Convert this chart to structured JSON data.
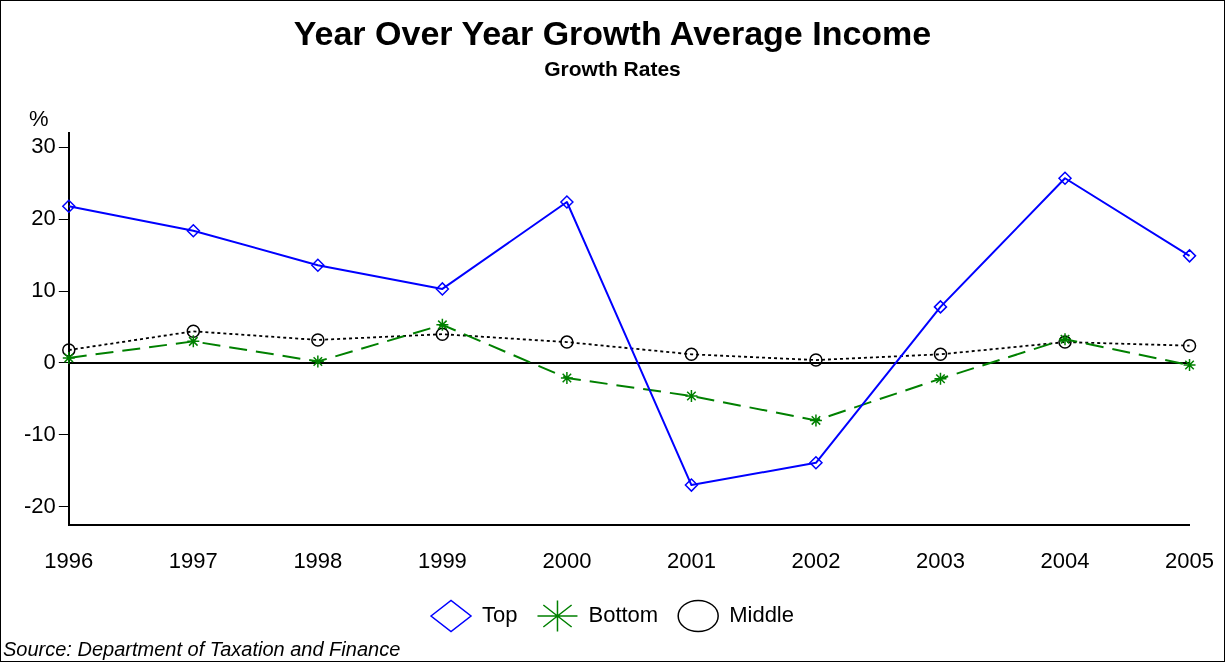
{
  "chart_data": {
    "type": "line",
    "title": "Year Over Year Growth Average Income",
    "subtitle": "Growth Rates",
    "ylabel": "%",
    "categories": [
      "1996",
      "1997",
      "1998",
      "1999",
      "2000",
      "2001",
      "2002",
      "2003",
      "2004",
      "2005"
    ],
    "series": [
      {
        "name": "Top",
        "color": "#0000ff",
        "marker": "diamond",
        "line_style": "solid",
        "values": [
          21.8,
          18.4,
          13.6,
          10.3,
          22.4,
          -17.0,
          -13.9,
          7.8,
          25.7,
          14.9
        ]
      },
      {
        "name": "Bottom",
        "color": "#008000",
        "marker": "cross",
        "line_style": "dashed",
        "values": [
          0.7,
          3.0,
          0.2,
          5.3,
          -2.1,
          -4.6,
          -8.0,
          -2.2,
          3.3,
          -0.3
        ]
      },
      {
        "name": "Middle",
        "color": "#000000",
        "marker": "circle",
        "line_style": "dotted",
        "values": [
          1.8,
          4.4,
          3.2,
          4.0,
          2.9,
          1.2,
          0.4,
          1.2,
          2.9,
          2.4
        ]
      }
    ],
    "ylim": [
      -22.5,
      32
    ],
    "yticks": [
      -20,
      -10,
      0,
      10,
      20,
      30
    ],
    "ref_lines": [
      {
        "axis": "y",
        "value": 0,
        "color": "#000000"
      }
    ],
    "grid": false,
    "legend": "bottom",
    "annotations": [
      "Source: Department of Taxation and Finance"
    ]
  }
}
